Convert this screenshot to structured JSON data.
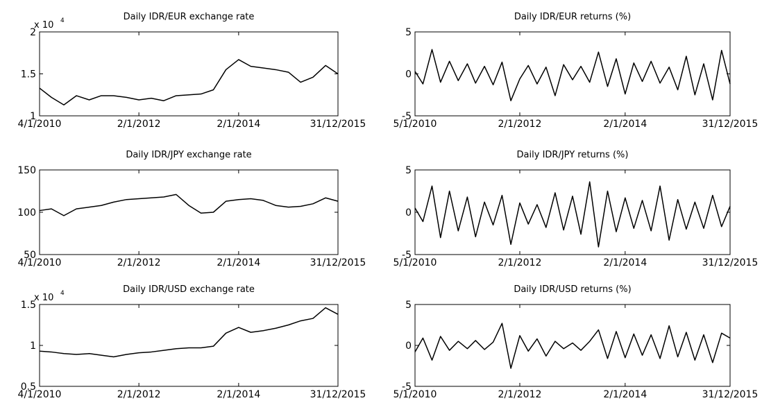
{
  "chart_data": [
    {
      "type": "line",
      "title": "Daily IDR/EUR exchange rate",
      "axis_multiplier": {
        "base": "x 10",
        "exponent": "4"
      },
      "x": [
        "2010-01-04",
        "2010-04-01",
        "2010-07-01",
        "2010-10-01",
        "2011-01-03",
        "2011-04-01",
        "2011-07-01",
        "2011-10-03",
        "2012-01-02",
        "2012-04-02",
        "2012-07-02",
        "2012-10-01",
        "2013-01-02",
        "2013-04-01",
        "2013-07-01",
        "2013-10-01",
        "2014-01-02",
        "2014-04-01",
        "2014-07-01",
        "2014-10-01",
        "2015-01-02",
        "2015-04-01",
        "2015-07-01",
        "2015-10-01",
        "2015-12-31"
      ],
      "values": [
        1.33,
        1.22,
        1.13,
        1.24,
        1.19,
        1.24,
        1.24,
        1.22,
        1.19,
        1.21,
        1.18,
        1.24,
        1.25,
        1.26,
        1.31,
        1.55,
        1.67,
        1.59,
        1.57,
        1.55,
        1.52,
        1.4,
        1.46,
        1.6,
        1.5
      ],
      "color": "#000000",
      "xlim": [
        "2010-01-04",
        "2015-12-31"
      ],
      "xticks": [
        {
          "value": "2010-01-04",
          "label": "4/1/2010"
        },
        {
          "value": "2012-01-02",
          "label": "2/1/2012"
        },
        {
          "value": "2014-01-02",
          "label": "2/1/2014"
        },
        {
          "value": "2015-12-31",
          "label": "31/12/2015"
        }
      ],
      "ylim": [
        1,
        2
      ],
      "yticks": [
        1,
        1.5,
        2
      ]
    },
    {
      "type": "line",
      "title": "Daily IDR/EUR returns (%)",
      "x": [
        "2010-01-05",
        "2010-03-01",
        "2010-05-03",
        "2010-07-01",
        "2010-09-01",
        "2010-11-01",
        "2011-01-03",
        "2011-03-01",
        "2011-05-02",
        "2011-07-01",
        "2011-09-01",
        "2011-11-01",
        "2012-01-02",
        "2012-03-01",
        "2012-05-01",
        "2012-07-02",
        "2012-09-03",
        "2012-11-01",
        "2013-01-02",
        "2013-03-01",
        "2013-05-01",
        "2013-07-01",
        "2013-09-02",
        "2013-11-01",
        "2014-01-02",
        "2014-03-03",
        "2014-05-01",
        "2014-07-01",
        "2014-09-01",
        "2014-11-03",
        "2015-01-02",
        "2015-03-02",
        "2015-05-01",
        "2015-07-01",
        "2015-09-01",
        "2015-11-02",
        "2015-12-31"
      ],
      "values": [
        0.3,
        -1.2,
        2.9,
        -1.0,
        1.5,
        -0.8,
        1.2,
        -1.1,
        0.9,
        -1.3,
        1.4,
        -3.2,
        -0.6,
        1.0,
        -1.2,
        0.8,
        -2.6,
        1.1,
        -0.7,
        0.9,
        -1.0,
        2.6,
        -1.5,
        1.8,
        -2.4,
        1.3,
        -0.9,
        1.5,
        -1.1,
        0.8,
        -1.9,
        2.1,
        -2.5,
        1.2,
        -3.1,
        2.8,
        -1.2
      ],
      "color": "#000000",
      "xlim": [
        "2010-01-05",
        "2015-12-31"
      ],
      "xticks": [
        {
          "value": "2010-01-05",
          "label": "5/1/2010"
        },
        {
          "value": "2012-01-02",
          "label": "2/1/2012"
        },
        {
          "value": "2014-01-02",
          "label": "2/1/2014"
        },
        {
          "value": "2015-12-31",
          "label": "31/12/2015"
        }
      ],
      "ylim": [
        -5,
        5
      ],
      "yticks": [
        -5,
        0,
        5
      ]
    },
    {
      "type": "line",
      "title": "Daily IDR/JPY exchange rate",
      "x": [
        "2010-01-04",
        "2010-04-01",
        "2010-07-01",
        "2010-10-01",
        "2011-01-03",
        "2011-04-01",
        "2011-07-01",
        "2011-10-03",
        "2012-01-02",
        "2012-04-02",
        "2012-07-02",
        "2012-10-01",
        "2013-01-02",
        "2013-04-01",
        "2013-07-01",
        "2013-10-01",
        "2014-01-02",
        "2014-04-01",
        "2014-07-01",
        "2014-10-01",
        "2015-01-02",
        "2015-04-01",
        "2015-07-01",
        "2015-10-01",
        "2015-12-31"
      ],
      "values": [
        102,
        104,
        96,
        104,
        106,
        108,
        112,
        115,
        116,
        117,
        118,
        121,
        108,
        99,
        100,
        113,
        115,
        116,
        114,
        108,
        106,
        107,
        110,
        117,
        113
      ],
      "color": "#000000",
      "xlim": [
        "2010-01-04",
        "2015-12-31"
      ],
      "xticks": [
        {
          "value": "2010-01-04",
          "label": "4/1/2010"
        },
        {
          "value": "2012-01-02",
          "label": "2/1/2012"
        },
        {
          "value": "2014-01-02",
          "label": "2/1/2014"
        },
        {
          "value": "2015-12-31",
          "label": "31/12/2015"
        }
      ],
      "ylim": [
        50,
        150
      ],
      "yticks": [
        50,
        100,
        150
      ]
    },
    {
      "type": "line",
      "title": "Daily IDR/JPY returns (%)",
      "x": [
        "2010-01-05",
        "2010-03-01",
        "2010-05-03",
        "2010-07-01",
        "2010-09-01",
        "2010-11-01",
        "2011-01-03",
        "2011-03-01",
        "2011-05-02",
        "2011-07-01",
        "2011-09-01",
        "2011-11-01",
        "2012-01-02",
        "2012-03-01",
        "2012-05-01",
        "2012-07-02",
        "2012-09-03",
        "2012-11-01",
        "2013-01-02",
        "2013-03-01",
        "2013-05-01",
        "2013-07-01",
        "2013-09-02",
        "2013-11-01",
        "2014-01-02",
        "2014-03-03",
        "2014-05-01",
        "2014-07-01",
        "2014-09-01",
        "2014-11-03",
        "2015-01-02",
        "2015-03-02",
        "2015-05-01",
        "2015-07-01",
        "2015-09-01",
        "2015-11-02",
        "2015-12-31"
      ],
      "values": [
        0.5,
        -1.1,
        3.1,
        -3.0,
        2.5,
        -2.2,
        1.8,
        -2.9,
        1.2,
        -1.5,
        2.0,
        -3.8,
        1.1,
        -1.4,
        0.9,
        -1.8,
        2.3,
        -2.1,
        1.9,
        -2.6,
        3.6,
        -4.1,
        2.5,
        -2.3,
        1.7,
        -1.9,
        1.4,
        -2.2,
        3.1,
        -3.3,
        1.5,
        -2.0,
        1.2,
        -1.9,
        2.0,
        -1.7,
        0.7
      ],
      "color": "#000000",
      "xlim": [
        "2010-01-05",
        "2015-12-31"
      ],
      "xticks": [
        {
          "value": "2010-01-05",
          "label": "5/1/2010"
        },
        {
          "value": "2012-01-02",
          "label": "2/1/2012"
        },
        {
          "value": "2014-01-02",
          "label": "2/1/2014"
        },
        {
          "value": "2015-12-31",
          "label": "31/12/2015"
        }
      ],
      "ylim": [
        -5,
        5
      ],
      "yticks": [
        -5,
        0,
        5
      ]
    },
    {
      "type": "line",
      "title": "Daily IDR/USD exchange rate",
      "axis_multiplier": {
        "base": "x 10",
        "exponent": "4"
      },
      "x": [
        "2010-01-04",
        "2010-04-01",
        "2010-07-01",
        "2010-10-01",
        "2011-01-03",
        "2011-04-01",
        "2011-07-01",
        "2011-10-03",
        "2012-01-02",
        "2012-04-02",
        "2012-07-02",
        "2012-10-01",
        "2013-01-02",
        "2013-04-01",
        "2013-07-01",
        "2013-10-01",
        "2014-01-02",
        "2014-04-01",
        "2014-07-01",
        "2014-10-01",
        "2015-01-02",
        "2015-04-01",
        "2015-07-01",
        "2015-10-01",
        "2015-12-31"
      ],
      "values": [
        0.93,
        0.92,
        0.9,
        0.89,
        0.9,
        0.88,
        0.86,
        0.89,
        0.91,
        0.92,
        0.94,
        0.96,
        0.97,
        0.97,
        0.99,
        1.15,
        1.22,
        1.16,
        1.18,
        1.21,
        1.25,
        1.3,
        1.33,
        1.46,
        1.38
      ],
      "color": "#000000",
      "xlim": [
        "2010-01-04",
        "2015-12-31"
      ],
      "xticks": [
        {
          "value": "2010-01-04",
          "label": "4/1/2010"
        },
        {
          "value": "2012-01-02",
          "label": "2/1/2012"
        },
        {
          "value": "2014-01-02",
          "label": "2/1/2014"
        },
        {
          "value": "2015-12-31",
          "label": "31/12/2015"
        }
      ],
      "ylim": [
        0.5,
        1.5
      ],
      "yticks": [
        0.5,
        1,
        1.5
      ]
    },
    {
      "type": "line",
      "title": "Daily IDR/USD returns (%)",
      "x": [
        "2010-01-05",
        "2010-03-01",
        "2010-05-03",
        "2010-07-01",
        "2010-09-01",
        "2010-11-01",
        "2011-01-03",
        "2011-03-01",
        "2011-05-02",
        "2011-07-01",
        "2011-09-01",
        "2011-11-01",
        "2012-01-02",
        "2012-03-01",
        "2012-05-01",
        "2012-07-02",
        "2012-09-03",
        "2012-11-01",
        "2013-01-02",
        "2013-03-01",
        "2013-05-01",
        "2013-07-01",
        "2013-09-02",
        "2013-11-01",
        "2014-01-02",
        "2014-03-03",
        "2014-05-01",
        "2014-07-01",
        "2014-09-01",
        "2014-11-03",
        "2015-01-02",
        "2015-03-02",
        "2015-05-01",
        "2015-07-01",
        "2015-09-01",
        "2015-11-02",
        "2015-12-31"
      ],
      "values": [
        -0.8,
        0.9,
        -1.8,
        1.1,
        -0.6,
        0.5,
        -0.4,
        0.6,
        -0.5,
        0.4,
        2.7,
        -2.8,
        1.2,
        -0.7,
        0.8,
        -1.3,
        0.5,
        -0.4,
        0.3,
        -0.6,
        0.5,
        1.9,
        -1.6,
        1.7,
        -1.5,
        1.4,
        -1.2,
        1.3,
        -1.6,
        2.4,
        -1.4,
        1.6,
        -1.8,
        1.3,
        -2.1,
        1.5,
        0.9
      ],
      "color": "#000000",
      "xlim": [
        "2010-01-05",
        "2015-12-31"
      ],
      "xticks": [
        {
          "value": "2010-01-05",
          "label": "5/1/2010"
        },
        {
          "value": "2012-01-02",
          "label": "2/1/2012"
        },
        {
          "value": "2014-01-02",
          "label": "2/1/2014"
        },
        {
          "value": "2015-12-31",
          "label": "31/12/2015"
        }
      ],
      "ylim": [
        -5,
        5
      ],
      "yticks": [
        -5,
        0,
        5
      ]
    }
  ]
}
